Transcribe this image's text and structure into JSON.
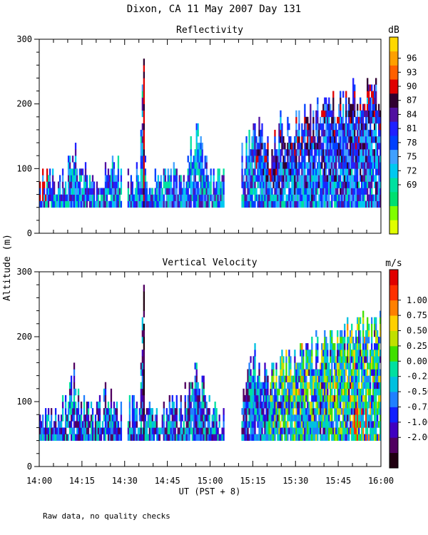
{
  "chart_data": {
    "type": "heatmap",
    "title": "Dixon, CA 11 May 2007  Day 131",
    "ylabel": "Altitude (m)",
    "xlabel": "UT  (PST + 8)",
    "footnote": "Raw data, no quality checks",
    "x_ticks": [
      "14:00",
      "14:15",
      "14:30",
      "14:45",
      "15:00",
      "15:15",
      "15:30",
      "15:45",
      "16:00"
    ],
    "x_range_minutes": [
      0,
      120
    ],
    "y_ticks": [
      "0",
      "100",
      "200",
      "300"
    ],
    "ylim": [
      0,
      300
    ],
    "panels": [
      {
        "title": "Reflectivity",
        "units": "dB",
        "colorbar_ticks": [
          "96",
          "93",
          "90",
          "87",
          "84",
          "81",
          "78",
          "75",
          "72",
          "69"
        ],
        "colors": [
          "#e0ff00",
          "#80ff00",
          "#00e070",
          "#00e0a0",
          "#00c8f0",
          "#40a0ff",
          "#0040ff",
          "#2020ff",
          "#5010a0",
          "#300030",
          "#e00000",
          "#ff6000",
          "#ffa000",
          "#ffd800"
        ]
      },
      {
        "title": "Vertical Velocity",
        "units": "m/s",
        "colorbar_ticks": [
          "1.00",
          "0.75",
          "0.50",
          "0.25",
          "0.00",
          "-0.25",
          "-0.50",
          "-0.75",
          "-1.00",
          "-2.00"
        ],
        "colors": [
          "#200010",
          "#500060",
          "#4000c0",
          "#1020ff",
          "#2080ff",
          "#00c0e0",
          "#00e0a0",
          "#40e000",
          "#c0e000",
          "#ffd000",
          "#ff8000",
          "#ff3000",
          "#e00000"
        ]
      }
    ],
    "data_segments_minutes": [
      [
        0,
        29
      ],
      [
        31,
        38
      ],
      [
        38,
        65
      ],
      [
        71,
        120
      ]
    ],
    "cloud_top_m": [
      [
        0,
        95
      ],
      [
        5,
        100
      ],
      [
        10,
        120
      ],
      [
        12,
        155
      ],
      [
        15,
        110
      ],
      [
        20,
        110
      ],
      [
        25,
        130
      ],
      [
        29,
        110
      ],
      [
        31,
        110
      ],
      [
        35,
        120
      ],
      [
        36,
        280
      ],
      [
        37,
        120
      ],
      [
        40,
        110
      ],
      [
        50,
        110
      ],
      [
        55,
        175
      ],
      [
        60,
        100
      ],
      [
        65,
        100
      ],
      [
        71,
        140
      ],
      [
        75,
        195
      ],
      [
        80,
        150
      ],
      [
        85,
        190
      ],
      [
        90,
        190
      ],
      [
        95,
        200
      ],
      [
        100,
        210
      ],
      [
        105,
        220
      ],
      [
        110,
        235
      ],
      [
        115,
        235
      ],
      [
        120,
        235
      ]
    ],
    "cloud_base_m": 40
  }
}
